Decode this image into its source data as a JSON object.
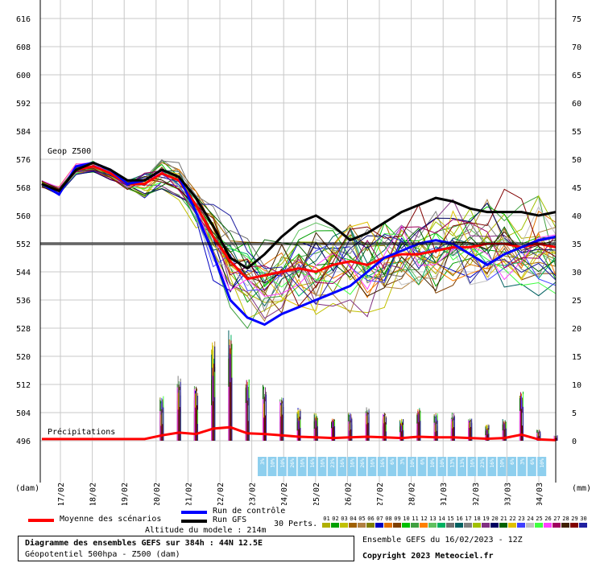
{
  "chart_data": {
    "type": "line",
    "ylabel_left": "(dam)",
    "ylabel_right": "(mm)",
    "y_left_ticks": [
      616,
      608,
      600,
      592,
      584,
      576,
      568,
      560,
      552,
      544,
      536,
      528,
      520,
      512,
      504,
      496
    ],
    "y_right_ticks": [
      75,
      70,
      65,
      60,
      55,
      50,
      45,
      40,
      35,
      30,
      25,
      20,
      15,
      10,
      5,
      0
    ],
    "x_ticks": [
      "17/02",
      "18/02",
      "19/02",
      "20/02",
      "21/02",
      "22/02",
      "23/02",
      "24/02",
      "25/02",
      "26/02",
      "27/02",
      "28/02",
      "01/03",
      "02/03",
      "03/03",
      "04/03"
    ],
    "annotation_geop": "Geop Z500",
    "annotation_precip": "Précipitations",
    "reference_line_value": 552,
    "series": [
      {
        "name": "Moyenne des scénarios",
        "color": "#ff0000",
        "values": [
          569,
          567,
          573,
          574,
          572,
          569,
          569,
          572,
          570,
          563,
          554,
          547,
          542,
          543,
          544,
          545,
          544,
          546,
          547,
          546,
          548,
          549,
          549,
          550,
          551,
          551,
          552,
          552,
          551,
          552,
          551
        ]
      },
      {
        "name": "Run de contrôle",
        "color": "#0000ff",
        "values": [
          569,
          566,
          574,
          575,
          573,
          569,
          570,
          573,
          571,
          561,
          549,
          536,
          531,
          529,
          532,
          534,
          536,
          538,
          540,
          544,
          548,
          550,
          552,
          553,
          552,
          549,
          546,
          549,
          551,
          553,
          554
        ]
      },
      {
        "name": "Run GFS",
        "color": "#000000",
        "values": [
          569,
          567,
          573,
          575,
          573,
          570,
          570,
          573,
          571,
          565,
          557,
          548,
          545,
          549,
          554,
          558,
          560,
          557,
          553,
          555,
          558,
          561,
          563,
          565,
          564,
          562,
          561,
          561,
          561,
          560,
          561
        ]
      }
    ],
    "precip_peaks": [
      10,
      11,
      14,
      12,
      8,
      9,
      10,
      8,
      12,
      10,
      18,
      20,
      11,
      10,
      8,
      6,
      5,
      4,
      5,
      6,
      5,
      4,
      6,
      5,
      5,
      4,
      3,
      4,
      9,
      2,
      1
    ],
    "perturbation_labels": [
      "3%",
      "10%",
      "10%",
      "26%",
      "16%",
      "16%",
      "16%",
      "23%",
      "16%",
      "16%",
      "26%",
      "16%",
      "16%",
      "6%",
      "3%",
      "10%",
      "6%",
      "10%",
      "10%",
      "13%",
      "13%",
      "16%",
      "23%",
      "16%",
      "10%",
      "6%",
      "3%",
      "6%",
      "10%"
    ]
  },
  "legend": {
    "mean": "Moyenne des scénarios",
    "control": "Run de contrôle",
    "gfs": "Run GFS",
    "perts": "30 Perts.",
    "altitude": "Altitude du modele : 214m",
    "title1": "Diagramme des ensembles GEFS sur 384h : 44N 12.5E",
    "title2": "Géopotentiel 500hpa - Z500 (dam)",
    "ensemble": "Ensemble GEFS du 16/02/2023 - 12Z",
    "copyright": "Copyright 2023 Meteociel.fr",
    "pert_numbers": [
      "01",
      "02",
      "03",
      "04",
      "05",
      "06",
      "07",
      "08",
      "09",
      "10",
      "11",
      "12",
      "13",
      "14",
      "15",
      "16",
      "17",
      "18",
      "19",
      "20",
      "21",
      "22",
      "23",
      "24",
      "25",
      "26",
      "27",
      "28",
      "29",
      "30"
    ],
    "pert_colors": [
      "#b0b000",
      "#00a000",
      "#c0c000",
      "#a06000",
      "#b08040",
      "#808000",
      "#0000c0",
      "#e07000",
      "#804000",
      "#00c000",
      "#40a040",
      "#ff8000",
      "#60c060",
      "#00b060",
      "#707070",
      "#006060",
      "#808080",
      "#a0c000",
      "#803080",
      "#000060",
      "#006000",
      "#e0c000",
      "#4040ff",
      "#c0c0c0",
      "#40ff40",
      "#ff40ff",
      "#a00060",
      "#402000",
      "#800000",
      "#2020a0"
    ],
    "colors": {
      "mean": "#ff0000",
      "control": "#0000ff",
      "gfs": "#000000"
    }
  }
}
